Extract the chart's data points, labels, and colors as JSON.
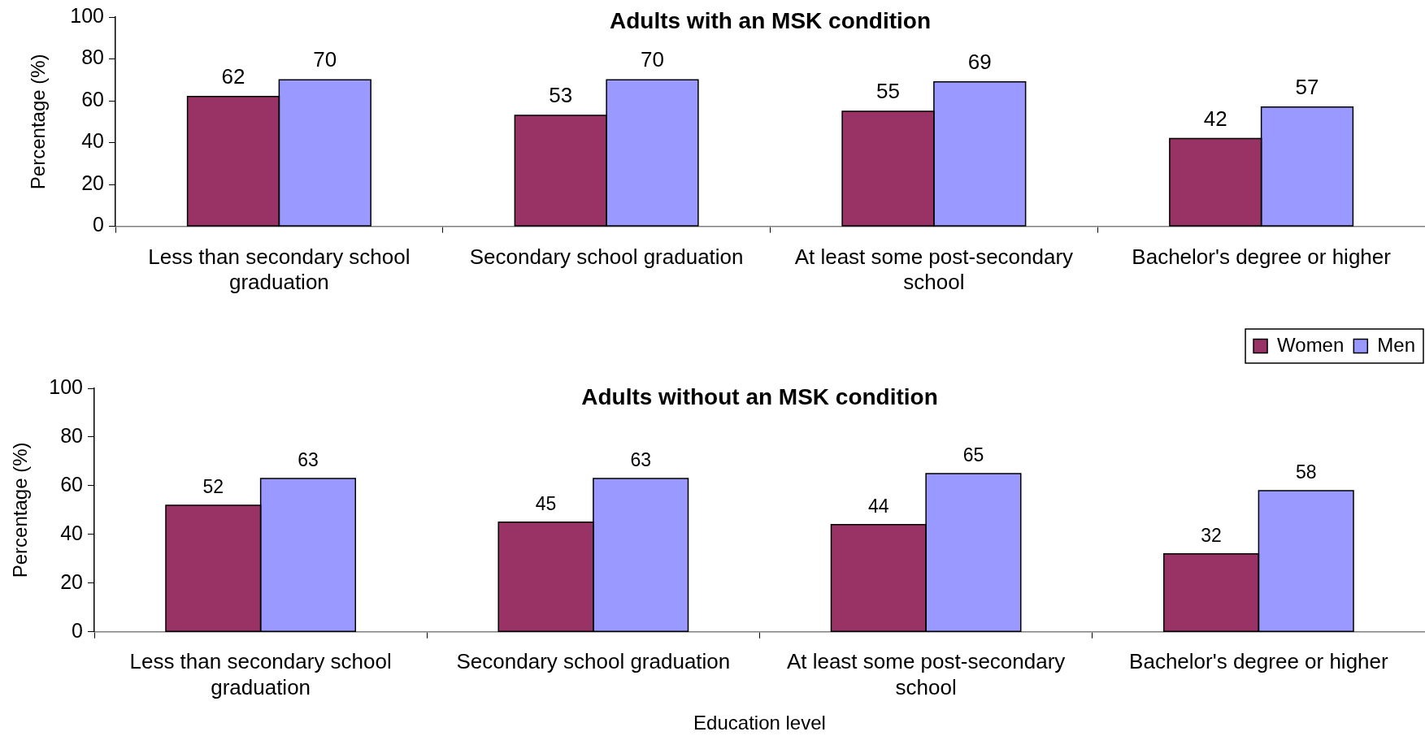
{
  "chart_data": [
    {
      "type": "bar",
      "title": "Adults with an MSK condition",
      "ylabel": "Percentage (%)",
      "categories": [
        "Less than secondary school graduation",
        "Secondary school graduation",
        "At least some post-secondary school",
        "Bachelor's degree or higher"
      ],
      "series": [
        {
          "color": "#993366",
          "values": [
            62,
            53,
            55,
            42
          ]
        },
        {
          "color": "#9999ff",
          "values": [
            70,
            70,
            69,
            57
          ]
        }
      ],
      "ylim": [
        0,
        100
      ],
      "yticks": [
        0,
        20,
        40,
        60,
        80,
        100
      ],
      "data_labels": true
    },
    {
      "type": "bar",
      "title": "Adults without an MSK condition",
      "xlabel": "Education level",
      "ylabel": "Percentage (%)",
      "categories": [
        "Less than secondary school graduation",
        "Secondary school graduation",
        "At least some post-secondary school",
        "Bachelor's degree or higher"
      ],
      "series": [
        {
          "name": "Women",
          "color": "#993366",
          "values": [
            52,
            45,
            44,
            32
          ]
        },
        {
          "name": "Men",
          "color": "#9999ff",
          "values": [
            63,
            63,
            65,
            58
          ]
        }
      ],
      "ylim": [
        0,
        100
      ],
      "yticks": [
        0,
        20,
        40,
        60,
        80,
        100
      ],
      "data_labels": true,
      "legend": "top right"
    }
  ]
}
